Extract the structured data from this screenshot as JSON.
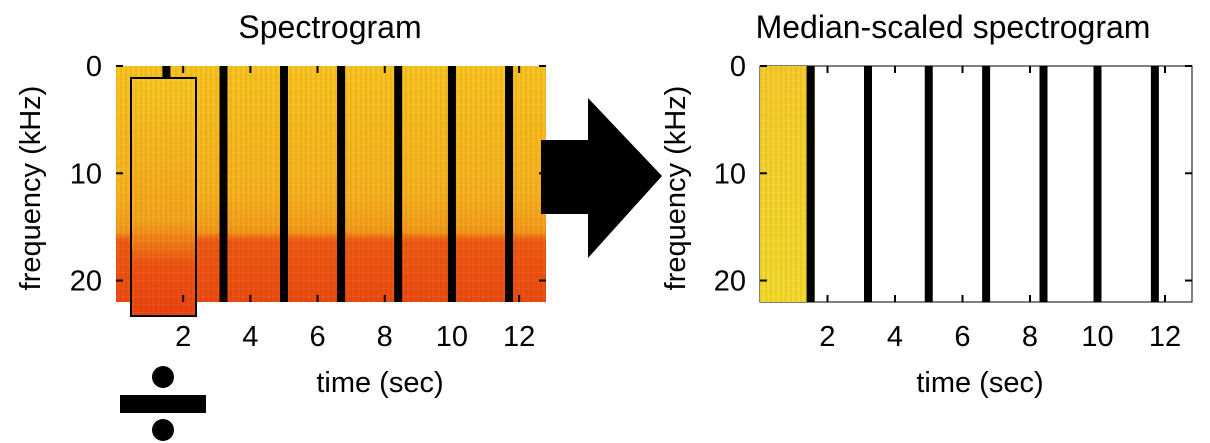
{
  "left_panel": {
    "title": "Spectrogram",
    "xlabel": "time (sec)",
    "ylabel": "frequency (kHz)",
    "x_ticks": [
      "2",
      "4",
      "6",
      "8",
      "10",
      "12"
    ],
    "y_ticks": [
      "0",
      "10",
      "20"
    ]
  },
  "right_panel": {
    "title": "Median-scaled spectrogram",
    "xlabel": "time (sec)",
    "ylabel": "frequency (kHz)",
    "x_ticks": [
      "2",
      "4",
      "6",
      "8",
      "10",
      "12"
    ],
    "y_ticks": [
      "0",
      "10",
      "20"
    ]
  },
  "operator_symbol": "÷",
  "colors": {
    "spectrogram_high": "#f7b51c",
    "spectrogram_mid": "#f28a18",
    "spectrogram_low": "#ee4a10",
    "scaled_fill": "#f3d328",
    "separator": "#000000",
    "arrow": "#000000"
  },
  "chart_data": [
    {
      "type": "heatmap",
      "title": "Spectrogram",
      "xlabel": "time (sec)",
      "ylabel": "frequency (kHz)",
      "xlim": [
        0,
        12.8
      ],
      "ylim": [
        22,
        0
      ],
      "separator_times": [
        1.5,
        3.2,
        5.0,
        6.7,
        8.4,
        10.0,
        11.7
      ]
    },
    {
      "type": "heatmap",
      "title": "Median-scaled spectrogram",
      "xlabel": "time (sec)",
      "ylabel": "frequency (kHz)",
      "xlim": [
        0,
        12.8
      ],
      "ylim": [
        22,
        0
      ],
      "separator_times": [
        1.5,
        3.2,
        5.0,
        6.7,
        8.4,
        10.0,
        11.7
      ]
    }
  ]
}
